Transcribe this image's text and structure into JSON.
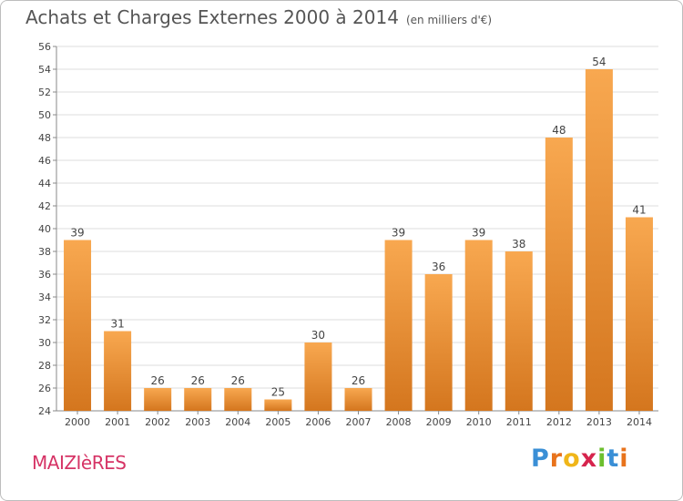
{
  "header": {
    "title": "Achats et Charges Externes 2000 à 2014",
    "unit": "(en milliers d'€)"
  },
  "footer": {
    "commune": "MAIZIèRES",
    "logo_text": "Proxiti"
  },
  "logo_letters": [
    {
      "ch": "P",
      "color": "#3a8fd6"
    },
    {
      "ch": "r",
      "color": "#e8731c"
    },
    {
      "ch": "o",
      "color": "#f0b619"
    },
    {
      "ch": "x",
      "color": "#d6244d"
    },
    {
      "ch": "i",
      "color": "#6cbf2e"
    },
    {
      "ch": "t",
      "color": "#3a8fd6"
    },
    {
      "ch": "i",
      "color": "#e8731c"
    }
  ],
  "chart_data": {
    "type": "bar",
    "title": "Achats et Charges Externes 2000 à 2014",
    "subtitle": "(en milliers d'€)",
    "xlabel": "",
    "ylabel": "",
    "categories": [
      "2000",
      "2001",
      "2002",
      "2003",
      "2004",
      "2005",
      "2006",
      "2007",
      "2008",
      "2009",
      "2010",
      "2011",
      "2012",
      "2013",
      "2014"
    ],
    "values": [
      39,
      31,
      26,
      26,
      26,
      25,
      30,
      26,
      39,
      36,
      39,
      38,
      48,
      54,
      41
    ],
    "data_labels": [
      "39",
      "31",
      "26",
      "26",
      "26",
      "25",
      "30",
      "26",
      "39",
      "36",
      "39",
      "38",
      "48",
      "54",
      "41"
    ],
    "ylim": [
      24,
      56
    ],
    "yticks": [
      24,
      26,
      28,
      30,
      32,
      34,
      36,
      38,
      40,
      42,
      44,
      46,
      48,
      50,
      52,
      54,
      56
    ],
    "grid": true,
    "colors": {
      "bar_light": "#f8a850",
      "bar_dark": "#d4761e",
      "grid": "#dddddd",
      "axis": "#888888",
      "text": "#444444"
    }
  }
}
